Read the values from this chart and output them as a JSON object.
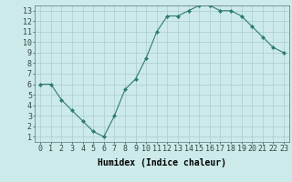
{
  "x": [
    0,
    1,
    2,
    3,
    4,
    5,
    6,
    7,
    8,
    9,
    10,
    11,
    12,
    13,
    14,
    15,
    16,
    17,
    18,
    19,
    20,
    21,
    22,
    23
  ],
  "y": [
    6,
    6,
    4.5,
    3.5,
    2.5,
    1.5,
    1,
    3,
    5.5,
    6.5,
    8.5,
    11,
    12.5,
    12.5,
    13,
    13.5,
    13.5,
    13,
    13,
    12.5,
    11.5,
    10.5,
    9.5,
    9
  ],
  "line_color": "#2e7d6e",
  "marker": "D",
  "marker_size": 2,
  "bg_color": "#cceaea",
  "grid_color": "#aacccc",
  "xlabel": "Humidex (Indice chaleur)",
  "xlim": [
    -0.5,
    23.5
  ],
  "ylim": [
    0.5,
    13.5
  ],
  "xticks": [
    0,
    1,
    2,
    3,
    4,
    5,
    6,
    7,
    8,
    9,
    10,
    11,
    12,
    13,
    14,
    15,
    16,
    17,
    18,
    19,
    20,
    21,
    22,
    23
  ],
  "yticks": [
    1,
    2,
    3,
    4,
    5,
    6,
    7,
    8,
    9,
    10,
    11,
    12,
    13
  ],
  "xlabel_fontsize": 7,
  "tick_fontsize": 6
}
